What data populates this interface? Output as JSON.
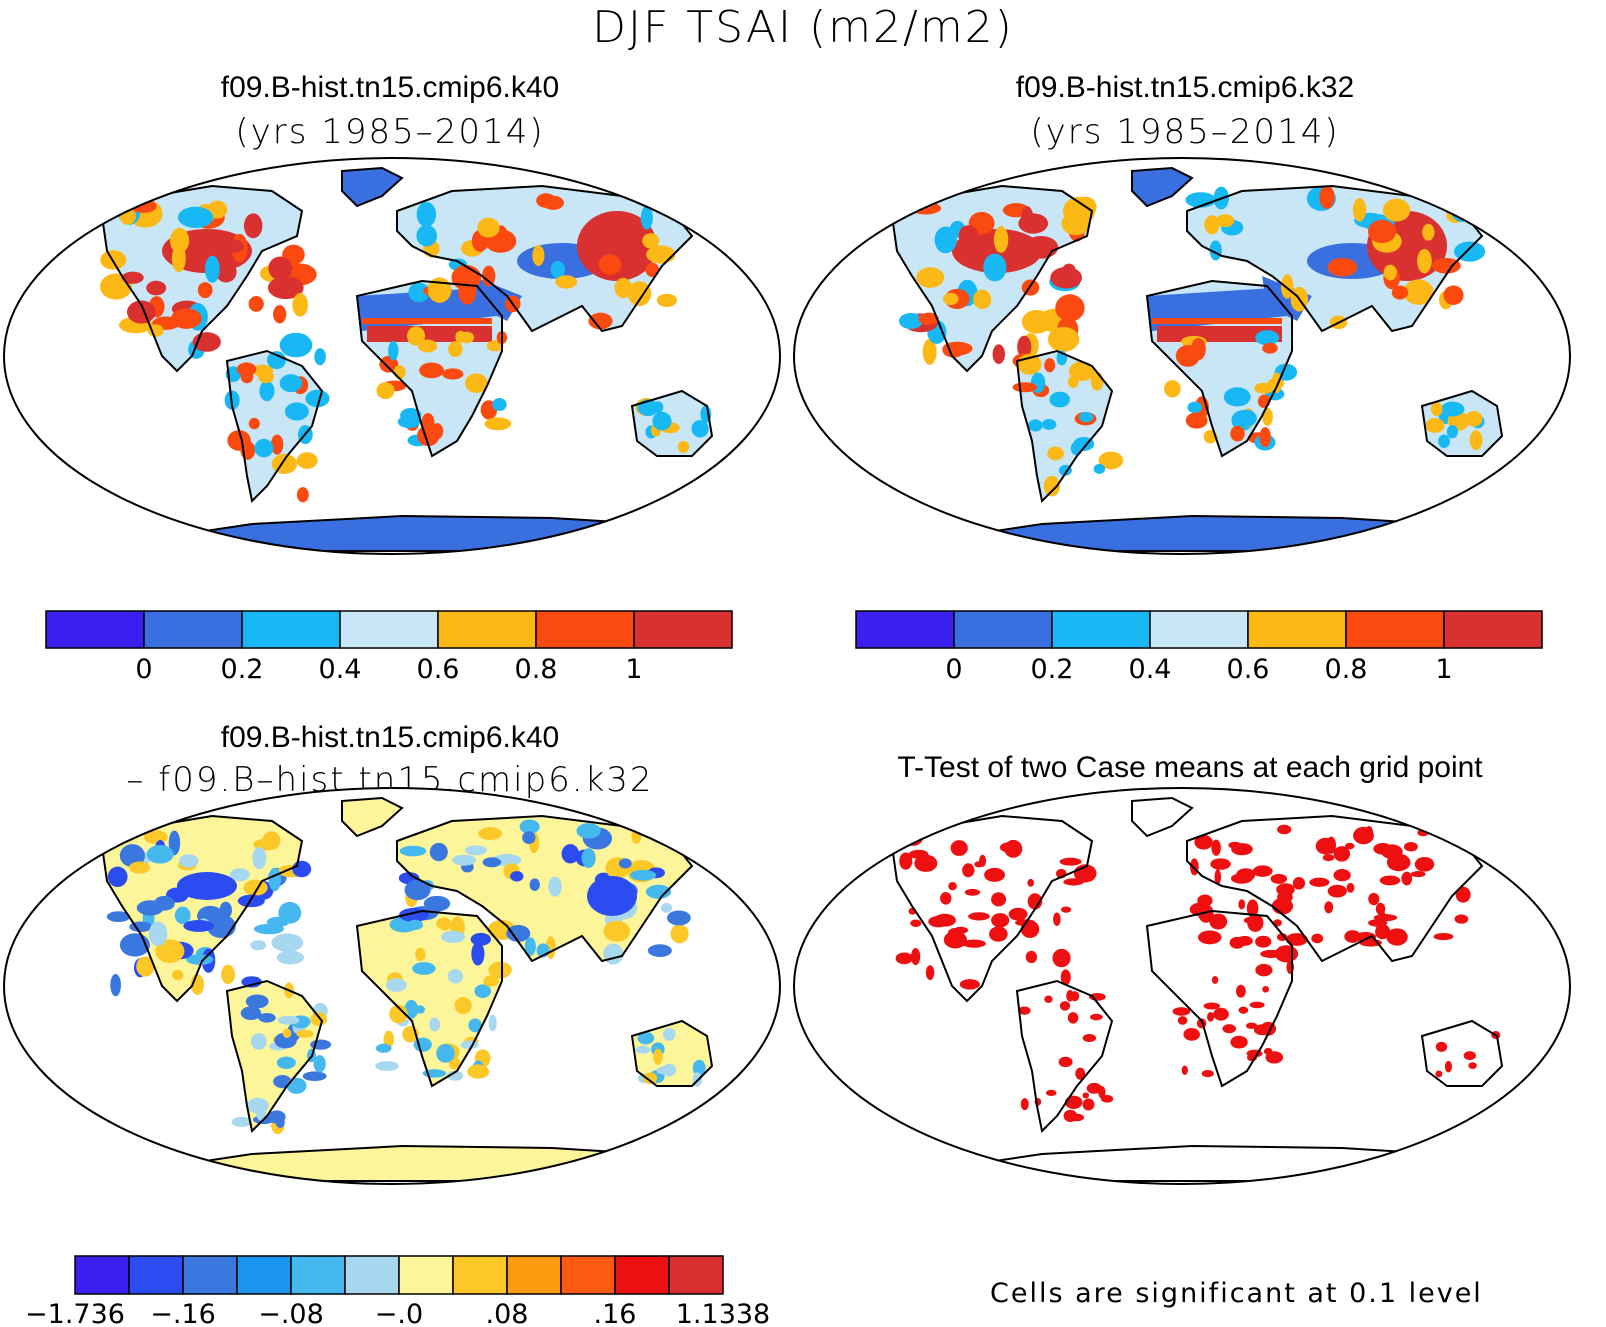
{
  "main_title": "DJF TSAI (m2/m2)",
  "panels": [
    {
      "title": "f09.B-hist.tn15.cmip6.k40",
      "subtitle": "(yrs 1985–2014)"
    },
    {
      "title": "f09.B-hist.tn15.cmip6.k32",
      "subtitle": "(yrs 1985–2014)"
    },
    {
      "title": "f09.B-hist.tn15.cmip6.k40",
      "subtitle": "– f09.B–hist.tn15.cmip6.k32"
    },
    {
      "title": "T-Test of two Case means at each grid point",
      "subtitle": ""
    }
  ],
  "colorbar_abs": {
    "colors": [
      "#3a1ff0",
      "#3a6fe0",
      "#18b8f5",
      "#c8e6f5",
      "#fcb814",
      "#fb4a10",
      "#d93030"
    ],
    "labels": [
      "0",
      "0.2",
      "0.4",
      "0.6",
      "0.8",
      "1"
    ]
  },
  "colorbar_diff": {
    "colors": [
      "#3a1ff0",
      "#2a4cf0",
      "#3a78e0",
      "#1a96f0",
      "#45b8f0",
      "#a8d8f0",
      "#fcf59a",
      "#fcc828",
      "#fc9a10",
      "#fc5a10",
      "#ec1010",
      "#d83030"
    ],
    "labels": [
      "−1.736",
      "−.16",
      "−.08",
      "−.0",
      ".08",
      ".16",
      "1.1338"
    ]
  },
  "ttest_note": "Cells are significant at 0.1 level",
  "chart_data": [
    {
      "type": "map",
      "title": "f09.B-hist.tn15.cmip6.k40",
      "subtitle": "(yrs 1985–2014)",
      "projection": "Robinson",
      "colorbar_labels": [
        0,
        0.2,
        0.4,
        0.6,
        0.8,
        1
      ]
    },
    {
      "type": "map",
      "title": "f09.B-hist.tn15.cmip6.k32",
      "subtitle": "(yrs 1985–2014)",
      "projection": "Robinson",
      "colorbar_labels": [
        0,
        0.2,
        0.4,
        0.6,
        0.8,
        1
      ]
    },
    {
      "type": "map",
      "title": "f09.B-hist.tn15.cmip6.k40 – f09.B–hist.tn15.cmip6.k32",
      "projection": "Robinson",
      "colorbar_labels": [
        -1.736,
        -0.16,
        -0.08,
        0.0,
        0.08,
        0.16,
        1.1338
      ]
    },
    {
      "type": "map",
      "title": "T-Test of two Case means at each grid point",
      "projection": "Robinson",
      "note": "Cells are significant at 0.1 level"
    }
  ]
}
